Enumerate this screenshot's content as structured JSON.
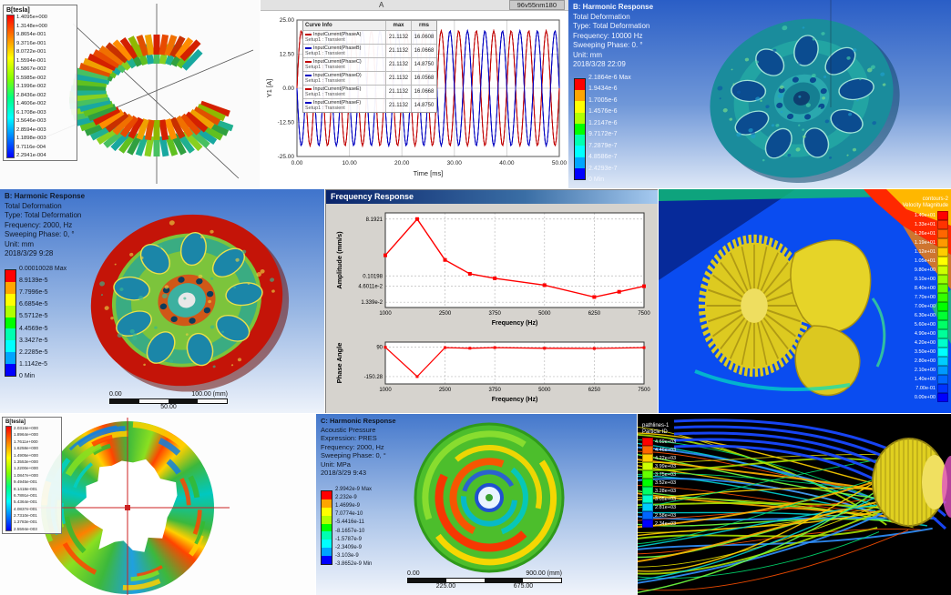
{
  "colors": {
    "ansys_bands": [
      "#ff0000",
      "#ffa500",
      "#ffff00",
      "#b0ff00",
      "#00ff00",
      "#00ffb0",
      "#00ffff",
      "#00a5ff",
      "#0000ff"
    ],
    "wave_red": "#c00000",
    "wave_blue": "#0000c0",
    "freq_line": "#ff0000"
  },
  "panels": {
    "maxwell_stator": {
      "legend_title": "B[tesla]",
      "legend_values": [
        "1.4095e+000",
        "1.3148e+000",
        "9.8654e-001",
        "9.3716e-001",
        "8.0722e-001",
        "1.5594e-001",
        "6.5867e-002",
        "5.5985e-002",
        "3.1996e-002",
        "2.8436e-002",
        "1.4606e-002",
        "6.1708e-003",
        "3.5646e-003",
        "2.8594e-003",
        "1.1898e-003",
        "9.7116e-004",
        "2.2941e-004"
      ]
    },
    "current_plot": {
      "corner_label": "A",
      "model_label": "96v55nm180",
      "legend_header": "Curve Info",
      "col_max": "max",
      "col_rms": "rms",
      "rows": [
        {
          "name": "InputCurrent(PhaseA)",
          "setup": "Setup1 : Transient",
          "max": "21.1132",
          "rms": "16.0608"
        },
        {
          "name": "InputCurrent(PhaseB)",
          "setup": "Setup1 : Transient",
          "max": "21.1132",
          "rms": "16.0668"
        },
        {
          "name": "InputCurrent(PhaseC)",
          "setup": "Setup1 : Transient",
          "max": "21.1132",
          "rms": "14.8750"
        },
        {
          "name": "InputCurrent(PhaseD)",
          "setup": "Setup1 : Transient",
          "max": "21.1132",
          "rms": "16.0568"
        },
        {
          "name": "InputCurrent(PhaseE)",
          "setup": "Setup1 : Transient",
          "max": "21.1132",
          "rms": "16.0668"
        },
        {
          "name": "InputCurrent(PhaseF)",
          "setup": "Setup1 : Transient",
          "max": "21.1132",
          "rms": "14.8750"
        }
      ]
    },
    "rotor_10000": {
      "header": [
        "B: Harmonic Response",
        "Total Deformation",
        "Type: Total Deformation",
        "Frequency: 10000 Hz",
        "Sweeping Phase: 0. °",
        "Unit: mm",
        "2018/3/28 22:09"
      ],
      "legend": [
        "2.1864e-6 Max",
        "1.9434e-6",
        "1.7005e-6",
        "1.4576e-6",
        "1.2147e-6",
        "9.7172e-7",
        "7.2879e-7",
        "4.8586e-7",
        "2.4293e-7",
        "0 Min"
      ]
    },
    "wheel_2000": {
      "header": [
        "B: Harmonic Response",
        "Total Deformation",
        "Type: Total Deformation",
        "Frequency: 2000, Hz",
        "Sweeping Phase: 0, °",
        "Unit: mm",
        "2018/3/29 9:28"
      ],
      "legend": [
        "0.00010028 Max",
        "8.9139e-5",
        "7.7996e-5",
        "6.6854e-5",
        "5.5712e-5",
        "4.4569e-5",
        "3.3427e-5",
        "2.2285e-5",
        "1.1142e-5",
        "0 Min"
      ],
      "scale": {
        "left": "0.00",
        "mid": "50.00",
        "right": "100.00 (mm)"
      }
    },
    "freq_window": {
      "title": "Frequency Response"
    },
    "cfd_fan": {
      "legend_title": [
        "contours-2",
        "Velocity Magnitude"
      ],
      "legend_values": [
        "1.40e+01",
        "1.33e+01",
        "1.26e+01",
        "1.19e+01",
        "1.12e+01",
        "1.05e+01",
        "9.80e+00",
        "9.10e+00",
        "8.40e+00",
        "7.70e+00",
        "7.00e+00",
        "6.30e+00",
        "5.60e+00",
        "4.90e+00",
        "4.20e+00",
        "3.50e+00",
        "2.80e+00",
        "2.10e+00",
        "1.40e+00",
        "7.00e-01",
        "0.00e+00"
      ]
    },
    "maxwell_rotor": {
      "legend_title": "B[tesla]",
      "legend_values": [
        "2.0316e+000",
        "1.8964e+000",
        "1.7611e+000",
        "1.6258e+000",
        "1.4905e+000",
        "1.3553e+000",
        "1.2200e+000",
        "1.0847e+000",
        "9.4945e-001",
        "8.1418e-001",
        "6.7891e-001",
        "5.4364e-001",
        "4.0837e-001",
        "2.7310e-001",
        "1.3783e-001",
        "2.5594e-003"
      ]
    },
    "acoustic_2000": {
      "header": [
        "C: Harmonic Response",
        "Acoustic Pressure",
        "Expression: PRES",
        "Frequency: 2000, Hz",
        "Sweeping Phase: 0, °",
        "Unit: MPa",
        "2018/3/29 9:43"
      ],
      "legend": [
        "2.9942e-9 Max",
        "2.232e-9",
        "1.4699e-9",
        "7.0774e-10",
        "-5.4416e-11",
        "-8.1657e-10",
        "-1.5787e-9",
        "-2.3409e-9",
        "-3.103e-9",
        "-3.8652e-9 Min"
      ],
      "scale": {
        "top_left": "0.00",
        "top_right": "900.00 (mm)",
        "bottom_left": "225.00",
        "bottom_right": "675.00"
      }
    },
    "particle_tracks": {
      "legend_title": [
        "pathlines-1",
        "Particle ID"
      ],
      "legend_values": [
        "4.69e+03",
        "4.46e+03",
        "4.22e+03",
        "3.99e+03",
        "3.75e+03",
        "3.52e+03",
        "3.28e+03",
        "3.05e+03",
        "2.81e+03",
        "2.58e+03",
        "2.34e+03"
      ]
    }
  },
  "chart_data": [
    {
      "id": "input_current",
      "type": "line",
      "title": "96v55nm180",
      "xlabel": "Time [ms]",
      "ylabel": "Y1 [A]",
      "xlim": [
        0,
        50
      ],
      "ylim": [
        -25,
        25
      ],
      "xticks": [
        0,
        10,
        20,
        30,
        40,
        50
      ],
      "yticks": [
        25,
        12.5,
        0,
        -12.5,
        -25
      ],
      "xtick_labels": [
        "0.00",
        "10.00",
        "20.00",
        "30.00",
        "40.00",
        "50.00"
      ],
      "ytick_labels": [
        "25.00",
        "12.50",
        "0.00",
        "-12.50",
        "-25.00"
      ],
      "frequency_hz": 300,
      "series": [
        {
          "name": "InputCurrent(PhaseA)",
          "amplitude": 21.1132,
          "phase_deg": 0,
          "color": "#c00000"
        },
        {
          "name": "InputCurrent(PhaseB)",
          "amplitude": 21.1132,
          "phase_deg": 180,
          "color": "#0000c0"
        },
        {
          "name": "InputCurrent(PhaseC)",
          "amplitude": 21.1132,
          "phase_deg": 0,
          "color": "#c00000"
        },
        {
          "name": "InputCurrent(PhaseD)",
          "amplitude": 21.1132,
          "phase_deg": 180,
          "color": "#0000c0"
        },
        {
          "name": "InputCurrent(PhaseE)",
          "amplitude": 21.1132,
          "phase_deg": 0,
          "color": "#c00000"
        },
        {
          "name": "InputCurrent(PhaseF)",
          "amplitude": 21.1132,
          "phase_deg": 180,
          "color": "#0000c0"
        }
      ]
    },
    {
      "id": "freq_amplitude",
      "type": "line",
      "ylabel": "Amplitude (mm/s)",
      "xlabel": "Frequency (Hz)",
      "yscale": "log",
      "x": [
        1000,
        1800,
        2500,
        3125,
        3750,
        5000,
        6250,
        6875,
        7500
      ],
      "y": [
        0.5,
        8.1921,
        0.35,
        0.12,
        0.085,
        0.05,
        0.02,
        0.03,
        0.046
      ],
      "xtick_labels": [
        "1000",
        "2500",
        "3750",
        "5000",
        "6250",
        "7500"
      ],
      "ytick_labels": [
        "8.1921",
        "0.10198",
        "4.6011e-2",
        "1.339e-2"
      ],
      "legend_position": "none",
      "color": "#ff0000"
    },
    {
      "id": "freq_phase",
      "type": "line",
      "ylabel": "Phase Angle",
      "xlabel": "Frequency (Hz)",
      "x": [
        1000,
        1800,
        2500,
        3125,
        3750,
        5000,
        6250,
        7500
      ],
      "y": [
        88,
        -150.28,
        85,
        80,
        85,
        80,
        78,
        85
      ],
      "ylim": [
        -210,
        130
      ],
      "xtick_labels": [
        "1000",
        "2500",
        "3750",
        "5000",
        "6250",
        "7500"
      ],
      "ytick_labels": [
        "90",
        "-150.28"
      ],
      "color": "#ff0000"
    }
  ]
}
